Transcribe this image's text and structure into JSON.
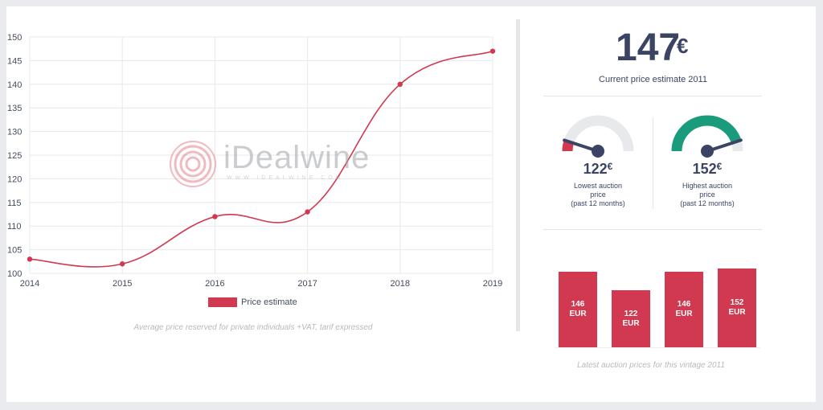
{
  "chart_data": [
    {
      "type": "line",
      "x": [
        "2014",
        "2015",
        "2016",
        "2017",
        "2018",
        "2019"
      ],
      "series": [
        {
          "name": "Price estimate",
          "values": [
            103,
            102,
            112,
            113,
            140,
            147
          ]
        }
      ],
      "ylim": [
        100,
        150
      ],
      "yticks": [
        "100",
        "105",
        "110",
        "115",
        "120",
        "125",
        "130",
        "135",
        "140",
        "145",
        "150"
      ],
      "grid": true,
      "legend": "bottom",
      "caption": "Average price reserved for private individuals +VAT, tarif expressed",
      "color": "#d0394f"
    },
    {
      "type": "bar",
      "values": [
        146,
        122,
        146,
        152
      ],
      "labels": [
        "146 EUR",
        "122 EUR",
        "146 EUR",
        "152 EUR"
      ],
      "caption": "Latest auction prices for this vintage 2011",
      "color": "#d0394f"
    }
  ],
  "logo": {
    "text": "iDealwine",
    "subtext": "WWW.IDEALWINE.COM"
  },
  "current": {
    "value": "147",
    "currency": "€",
    "caption": "Current price estimate 2011"
  },
  "gauges": [
    {
      "value": "122",
      "currency": "€",
      "label_line1": "Lowest auction",
      "label_line2": "price",
      "label_line3": "(past 12 months)",
      "level": 0.1,
      "color": "#d0394f"
    },
    {
      "value": "152",
      "currency": "€",
      "label_line1": "Highest auction",
      "label_line2": "price",
      "label_line3": "(past 12 months)",
      "level": 0.9,
      "color": "#1a9b7c"
    }
  ],
  "bars_display": [
    {
      "line1": "146",
      "line2": "EUR"
    },
    {
      "line1": "122",
      "line2": "EUR"
    },
    {
      "line1": "146",
      "line2": "EUR"
    },
    {
      "line1": "152",
      "line2": "EUR"
    }
  ]
}
